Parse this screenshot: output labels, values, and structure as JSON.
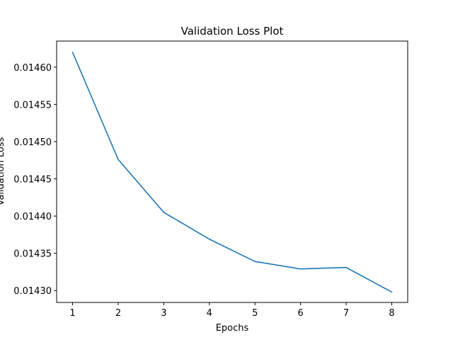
{
  "chart_data": {
    "type": "line",
    "title": "Validation Loss Plot",
    "xlabel": "Epochs",
    "ylabel": "Validation Loss",
    "x": [
      1,
      2,
      3,
      4,
      5,
      6,
      7,
      8
    ],
    "series": [
      {
        "values": [
          0.01462,
          0.014476,
          0.014405,
          0.014369,
          0.014339,
          0.014329,
          0.014331,
          0.014298
        ],
        "color": "#1f77b4"
      }
    ],
    "xlim": [
      0.65,
      8.35
    ],
    "ylim": [
      0.014284,
      0.014635
    ],
    "xticks": [
      1,
      2,
      3,
      4,
      5,
      6,
      7,
      8
    ],
    "xtick_labels": [
      "1",
      "2",
      "3",
      "4",
      "5",
      "6",
      "7",
      "8"
    ],
    "yticks": [
      0.0143,
      0.01435,
      0.0144,
      0.01445,
      0.0145,
      0.01455,
      0.0146
    ],
    "ytick_labels": [
      "0.01430",
      "0.01435",
      "0.01440",
      "0.01445",
      "0.01450",
      "0.01455",
      "0.01460"
    ],
    "grid": false,
    "legend": "none"
  }
}
